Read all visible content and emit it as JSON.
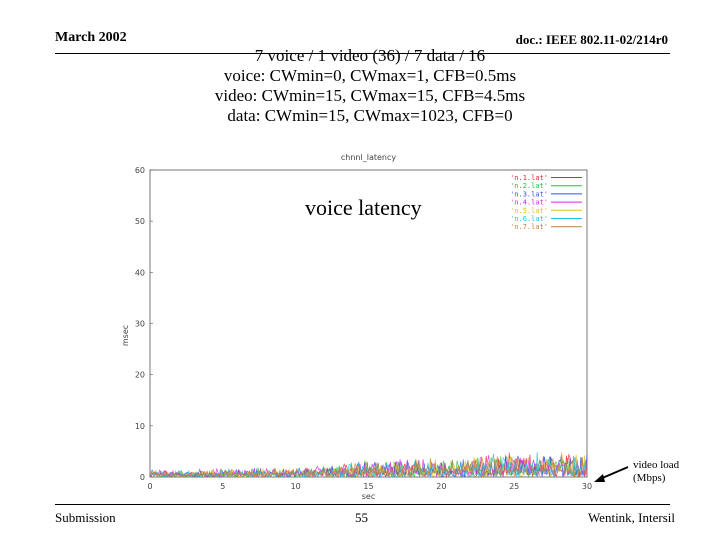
{
  "header": {
    "date": "March 2002",
    "doc": "doc.: IEEE 802.11-02/214r0"
  },
  "title_lines": [
    "7 voice / 1 video (36) / 7 data / 16",
    "voice: CWmin=0, CWmax=1, CFB=0.5ms",
    "video: CWmin=15, CWmax=15, CFB=4.5ms",
    "data: CWmin=15, CWmax=1023, CFB=0"
  ],
  "overlay_label": "voice latency",
  "side_note": [
    "video load",
    "(Mbps)"
  ],
  "footer": {
    "left": "Submission",
    "page": "55",
    "right": "Wentink, Intersil"
  },
  "colors": {
    "series": [
      "#e8203a",
      "#20c040",
      "#3050e8",
      "#e020e0",
      "#e0c020",
      "#20c0e0",
      "#c08040"
    ]
  },
  "chart_data": {
    "type": "line",
    "title": "chnnl_latency",
    "xlabel": "sec",
    "ylabel": "msec",
    "xlim": [
      0,
      30
    ],
    "ylim": [
      0,
      60
    ],
    "xticks": [
      0,
      5,
      10,
      15,
      20,
      25,
      30
    ],
    "yticks": [
      0,
      10,
      20,
      30,
      40,
      50,
      60
    ],
    "legend_position": "top-right",
    "series": [
      {
        "name": "'n.1.lat'",
        "envelope": [
          [
            0,
            1.5
          ],
          [
            10,
            2.0
          ],
          [
            15,
            3.5
          ],
          [
            20,
            4.0
          ],
          [
            25,
            5.0
          ],
          [
            30,
            5.5
          ]
        ]
      },
      {
        "name": "'n.2.lat'",
        "envelope": [
          [
            0,
            1.5
          ],
          [
            10,
            2.0
          ],
          [
            15,
            3.5
          ],
          [
            20,
            4.0
          ],
          [
            25,
            5.0
          ],
          [
            30,
            5.5
          ]
        ]
      },
      {
        "name": "'n.3.lat'",
        "envelope": [
          [
            0,
            1.5
          ],
          [
            10,
            2.0
          ],
          [
            15,
            3.5
          ],
          [
            20,
            4.0
          ],
          [
            25,
            5.0
          ],
          [
            30,
            5.5
          ]
        ]
      },
      {
        "name": "'n.4.lat'",
        "envelope": [
          [
            0,
            1.5
          ],
          [
            10,
            2.0
          ],
          [
            15,
            3.5
          ],
          [
            20,
            4.0
          ],
          [
            25,
            5.0
          ],
          [
            30,
            5.5
          ]
        ]
      },
      {
        "name": "'n.5.lat'",
        "envelope": [
          [
            0,
            1.5
          ],
          [
            10,
            2.0
          ],
          [
            15,
            3.5
          ],
          [
            20,
            4.0
          ],
          [
            25,
            5.0
          ],
          [
            30,
            5.5
          ]
        ]
      },
      {
        "name": "'n.6.lat'",
        "envelope": [
          [
            0,
            1.5
          ],
          [
            10,
            2.0
          ],
          [
            15,
            3.5
          ],
          [
            20,
            4.0
          ],
          [
            25,
            5.0
          ],
          [
            30,
            5.5
          ]
        ]
      },
      {
        "name": "'n.7.lat'",
        "envelope": [
          [
            0,
            1.5
          ],
          [
            10,
            2.0
          ],
          [
            15,
            3.5
          ],
          [
            20,
            4.0
          ],
          [
            25,
            5.0
          ],
          [
            30,
            5.5
          ]
        ]
      }
    ]
  }
}
